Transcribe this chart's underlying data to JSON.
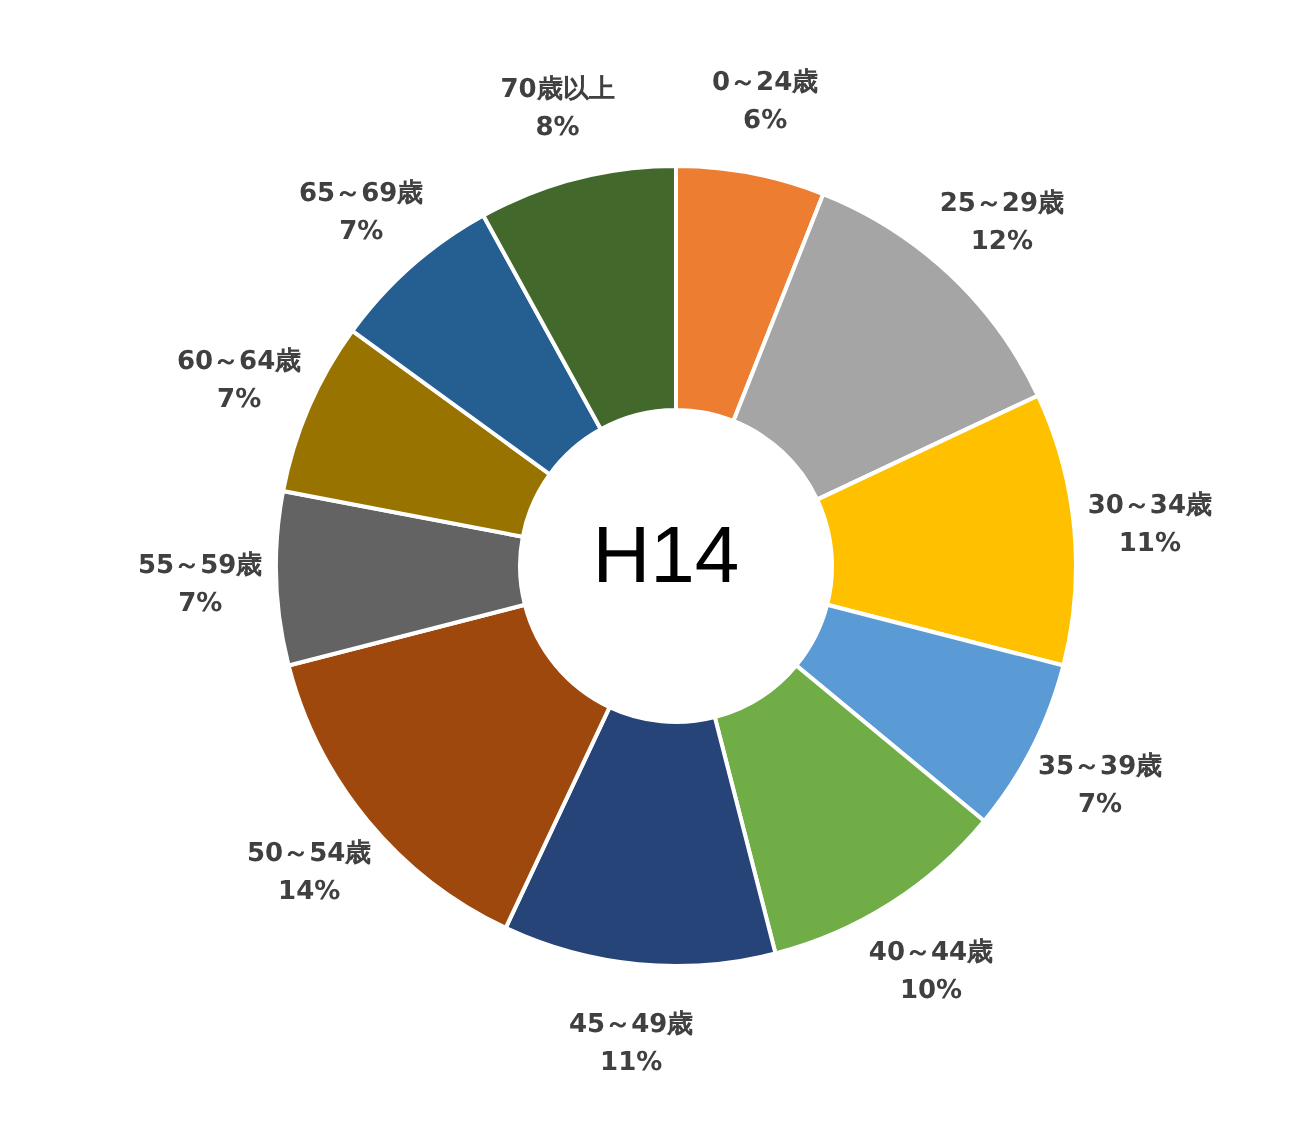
{
  "chart_data": {
    "type": "donut",
    "title": "H14",
    "categories": [
      "0～24歳",
      "25～29歳",
      "30～34歳",
      "35～39歳",
      "40～44歳",
      "45～49歳",
      "50～54歳",
      "55～59歳",
      "60～64歳",
      "65～69歳",
      "70歳以上"
    ],
    "values": [
      6,
      12,
      11,
      7,
      10,
      11,
      14,
      7,
      7,
      7,
      8
    ],
    "value_labels": [
      "6%",
      "12%",
      "11%",
      "7%",
      "10%",
      "11%",
      "14%",
      "7%",
      "7%",
      "7%",
      "8%"
    ],
    "colors": [
      "#ed7d31",
      "#a5a5a5",
      "#ffc000",
      "#5b9bd5",
      "#70ad47",
      "#264478",
      "#9e480e",
      "#636363",
      "#997300",
      "#255e91",
      "#43682b"
    ],
    "legend": false
  }
}
